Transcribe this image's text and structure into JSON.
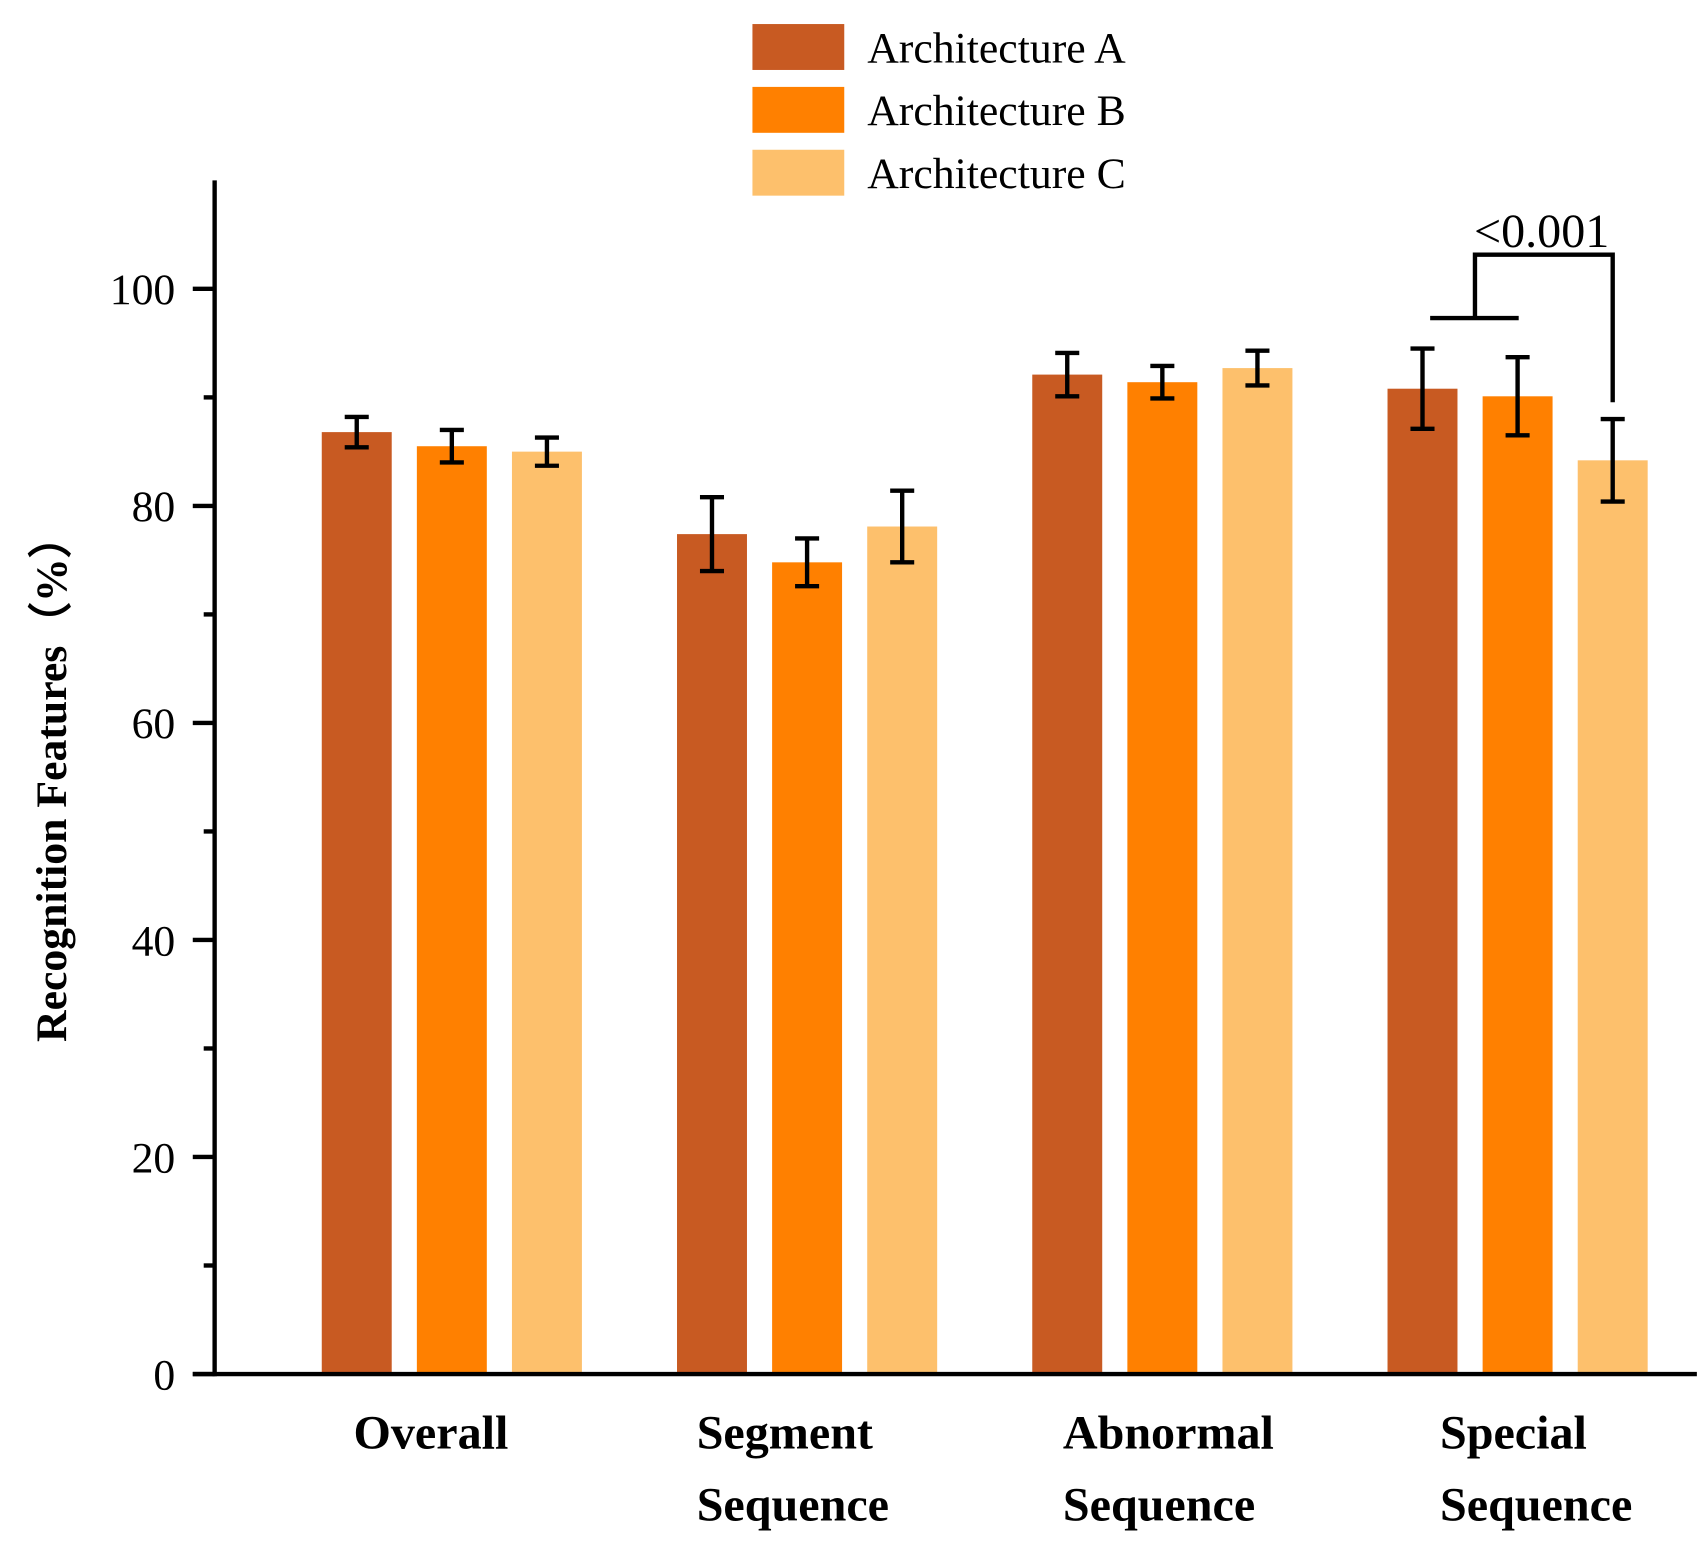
{
  "chart_data": {
    "type": "bar",
    "title": "",
    "xlabel": "",
    "ylabel": "Recognition Features（%）",
    "ylim": [
      0,
      110
    ],
    "yticks": [
      "0",
      "20",
      "40",
      "60",
      "80",
      "100"
    ],
    "categories": [
      [
        "Overall"
      ],
      [
        "Segment",
        "Sequence"
      ],
      [
        "Abnormal",
        "Sequence"
      ],
      [
        "Special",
        "Sequence"
      ]
    ],
    "series": [
      {
        "name": "Architecture A",
        "color": "#C85A22",
        "values": [
          86.8,
          77.4,
          92.1,
          90.8
        ],
        "errors": [
          1.4,
          3.4,
          2.0,
          3.7
        ]
      },
      {
        "name": "Architecture B",
        "color": "#FF8000",
        "values": [
          85.5,
          74.8,
          91.4,
          90.1
        ],
        "errors": [
          1.5,
          2.2,
          1.5,
          3.6
        ]
      },
      {
        "name": "Architecture C",
        "color": "#FDC06C",
        "values": [
          85.0,
          78.1,
          92.7,
          84.2
        ],
        "errors": [
          1.3,
          3.3,
          1.6,
          3.8
        ]
      }
    ],
    "legend_position": "top-center",
    "grid": false,
    "annotation": {
      "text": "<0.001",
      "category": "Special Sequence",
      "compares": [
        "Architecture A / Architecture B",
        "Architecture C"
      ]
    }
  }
}
